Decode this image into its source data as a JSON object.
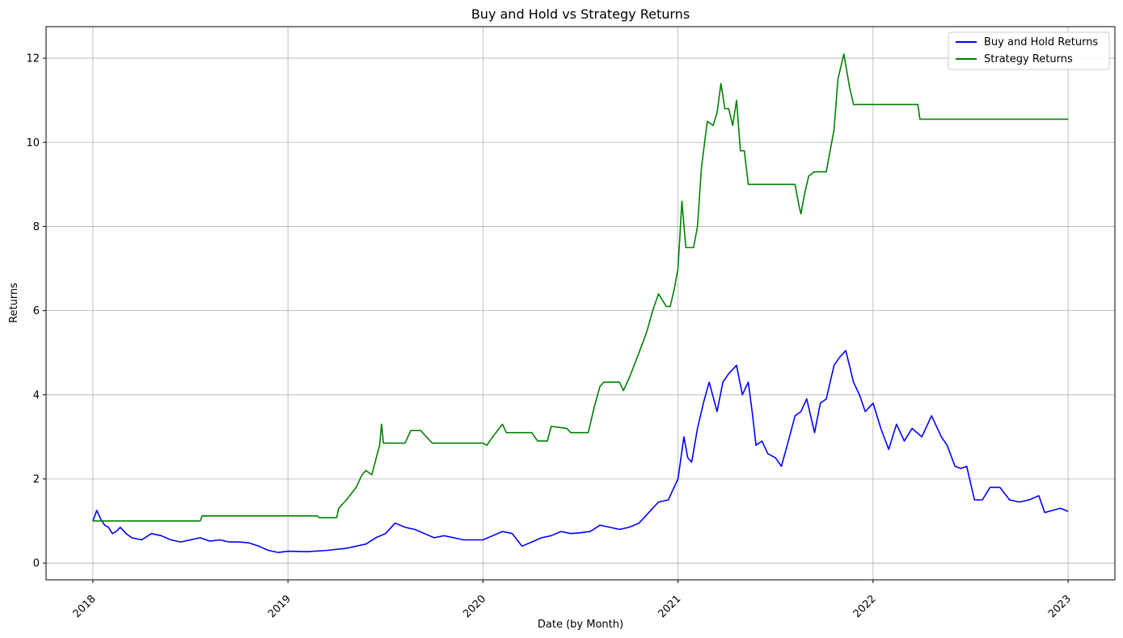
{
  "chart_data": {
    "type": "line",
    "title": "Buy and Hold vs Strategy Returns",
    "xlabel": "Date (by Month)",
    "ylabel": "Returns",
    "xlim": [
      2017.76,
      2023.24
    ],
    "ylim": [
      -0.4,
      12.75
    ],
    "x_ticks": [
      2018,
      2019,
      2020,
      2021,
      2022,
      2023
    ],
    "x_tick_labels": [
      "2018",
      "2019",
      "2020",
      "2021",
      "2022",
      "2023"
    ],
    "y_ticks": [
      0,
      2,
      4,
      6,
      8,
      10,
      12
    ],
    "y_tick_labels": [
      "0",
      "2",
      "4",
      "6",
      "8",
      "10",
      "12"
    ],
    "grid": true,
    "legend_position": "top-right",
    "series": [
      {
        "name": "Buy and Hold Returns",
        "color": "#0000ff",
        "x": [
          2018.0,
          2018.02,
          2018.04,
          2018.06,
          2018.08,
          2018.1,
          2018.12,
          2018.14,
          2018.17,
          2018.2,
          2018.25,
          2018.3,
          2018.35,
          2018.4,
          2018.45,
          2018.5,
          2018.55,
          2018.6,
          2018.65,
          2018.7,
          2018.75,
          2018.8,
          2018.85,
          2018.9,
          2018.95,
          2019.0,
          2019.1,
          2019.2,
          2019.3,
          2019.4,
          2019.45,
          2019.5,
          2019.55,
          2019.6,
          2019.65,
          2019.7,
          2019.75,
          2019.8,
          2019.85,
          2019.9,
          2019.95,
          2020.0,
          2020.05,
          2020.1,
          2020.15,
          2020.2,
          2020.25,
          2020.3,
          2020.35,
          2020.4,
          2020.45,
          2020.5,
          2020.55,
          2020.6,
          2020.65,
          2020.7,
          2020.75,
          2020.8,
          2020.85,
          2020.9,
          2020.95,
          2021.0,
          2021.03,
          2021.05,
          2021.07,
          2021.1,
          2021.13,
          2021.16,
          2021.2,
          2021.23,
          2021.26,
          2021.3,
          2021.33,
          2021.36,
          2021.38,
          2021.4,
          2021.43,
          2021.46,
          2021.5,
          2021.53,
          2021.56,
          2021.6,
          2021.63,
          2021.66,
          2021.7,
          2021.73,
          2021.76,
          2021.8,
          2021.83,
          2021.86,
          2021.9,
          2021.93,
          2021.96,
          2022.0,
          2022.04,
          2022.08,
          2022.12,
          2022.16,
          2022.2,
          2022.25,
          2022.3,
          2022.35,
          2022.38,
          2022.42,
          2022.45,
          2022.48,
          2022.52,
          2022.56,
          2022.6,
          2022.65,
          2022.7,
          2022.75,
          2022.8,
          2022.85,
          2022.88,
          2022.92,
          2022.96,
          2023.0
        ],
        "y": [
          1.0,
          1.25,
          1.05,
          0.9,
          0.85,
          0.7,
          0.75,
          0.85,
          0.7,
          0.6,
          0.55,
          0.7,
          0.65,
          0.55,
          0.5,
          0.55,
          0.6,
          0.52,
          0.55,
          0.5,
          0.5,
          0.48,
          0.4,
          0.3,
          0.25,
          0.28,
          0.27,
          0.3,
          0.35,
          0.45,
          0.6,
          0.7,
          0.95,
          0.85,
          0.8,
          0.7,
          0.6,
          0.65,
          0.6,
          0.55,
          0.55,
          0.55,
          0.65,
          0.75,
          0.7,
          0.4,
          0.5,
          0.6,
          0.65,
          0.75,
          0.7,
          0.72,
          0.75,
          0.9,
          0.85,
          0.8,
          0.85,
          0.95,
          1.2,
          1.45,
          1.5,
          2.0,
          3.0,
          2.5,
          2.4,
          3.2,
          3.8,
          4.3,
          3.6,
          4.3,
          4.5,
          4.7,
          4.0,
          4.3,
          3.6,
          2.8,
          2.9,
          2.6,
          2.5,
          2.3,
          2.8,
          3.5,
          3.6,
          3.9,
          3.1,
          3.8,
          3.9,
          4.7,
          4.9,
          5.05,
          4.3,
          4.0,
          3.6,
          3.8,
          3.2,
          2.7,
          3.3,
          2.9,
          3.2,
          3.0,
          3.5,
          3.0,
          2.8,
          2.3,
          2.25,
          2.3,
          1.5,
          1.5,
          1.8,
          1.8,
          1.5,
          1.45,
          1.5,
          1.6,
          1.2,
          1.25,
          1.3,
          1.23
        ]
      },
      {
        "name": "Strategy Returns",
        "color": "#008000",
        "x": [
          2018.0,
          2018.55,
          2018.56,
          2019.15,
          2019.16,
          2019.25,
          2019.26,
          2019.3,
          2019.35,
          2019.38,
          2019.4,
          2019.43,
          2019.47,
          2019.48,
          2019.49,
          2019.6,
          2019.63,
          2019.68,
          2019.72,
          2019.74,
          2020.0,
          2020.02,
          2020.05,
          2020.1,
          2020.12,
          2020.15,
          2020.25,
          2020.28,
          2020.33,
          2020.35,
          2020.43,
          2020.45,
          2020.5,
          2020.54,
          2020.57,
          2020.6,
          2020.62,
          2020.7,
          2020.72,
          2020.75,
          2020.8,
          2020.84,
          2020.87,
          2020.9,
          2020.94,
          2020.96,
          2020.98,
          2021.0,
          2021.02,
          2021.04,
          2021.06,
          2021.08,
          2021.1,
          2021.12,
          2021.15,
          2021.18,
          2021.2,
          2021.22,
          2021.24,
          2021.26,
          2021.28,
          2021.3,
          2021.32,
          2021.34,
          2021.36,
          2021.4,
          2021.6,
          2021.62,
          2021.63,
          2021.65,
          2021.67,
          2021.7,
          2021.72,
          2021.74,
          2021.76,
          2021.8,
          2021.82,
          2021.85,
          2021.88,
          2021.9,
          2022.1,
          2022.2,
          2022.23,
          2022.24,
          2023.0
        ],
        "y": [
          1.0,
          1.0,
          1.12,
          1.12,
          1.08,
          1.08,
          1.3,
          1.5,
          1.8,
          2.1,
          2.2,
          2.1,
          2.8,
          3.3,
          2.85,
          2.85,
          3.15,
          3.15,
          2.95,
          2.85,
          2.85,
          2.8,
          3.0,
          3.3,
          3.1,
          3.1,
          3.1,
          2.9,
          2.9,
          3.25,
          3.2,
          3.1,
          3.1,
          3.1,
          3.7,
          4.2,
          4.3,
          4.3,
          4.1,
          4.4,
          5.0,
          5.5,
          6.0,
          6.4,
          6.1,
          6.1,
          6.5,
          7.0,
          8.6,
          7.5,
          7.5,
          7.5,
          8.0,
          9.4,
          10.5,
          10.4,
          10.7,
          11.4,
          10.8,
          10.8,
          10.4,
          11.0,
          9.8,
          9.8,
          9.0,
          9.0,
          9.0,
          8.5,
          8.3,
          8.8,
          9.2,
          9.3,
          9.3,
          9.3,
          9.3,
          10.3,
          11.5,
          12.1,
          11.3,
          10.9,
          10.9,
          10.9,
          10.9,
          10.55,
          10.55
        ]
      }
    ]
  }
}
